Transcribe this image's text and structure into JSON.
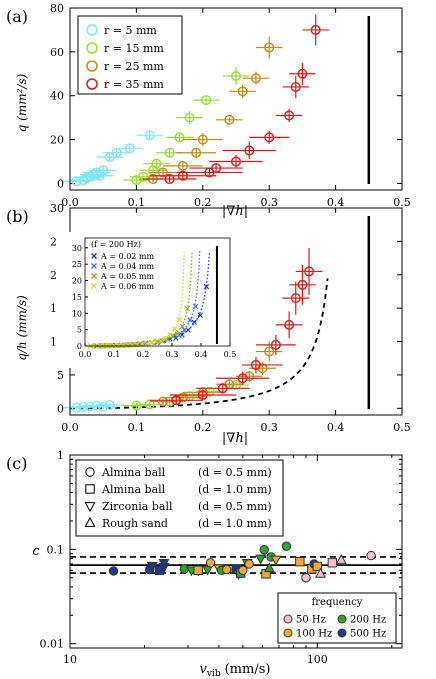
{
  "colors": {
    "r5": "#7de8f2",
    "r15": "#99dd33",
    "r25": "#c48a1a",
    "r35": "#e01818",
    "A002": "#1c2fd0",
    "A004": "#3c6ee8",
    "A005": "#9aa61c",
    "A006": "#d8d822",
    "f50": "#f4bfcf",
    "f100": "#f0a830",
    "f200": "#2aa62a",
    "f500": "#1c3a8c"
  },
  "chart_data": [
    {
      "id": "a",
      "type": "scatter",
      "panel_label": "(a)",
      "xlabel": "|∇h|",
      "ylabel": "q (mm²/s)",
      "xlim": [
        0,
        0.5
      ],
      "ylim": [
        -3,
        80
      ],
      "xticks": [
        "0.0",
        "0.1",
        "0.2",
        "0.3",
        "0.4",
        "0.5"
      ],
      "yticks": [
        "0",
        "20",
        "40",
        "60",
        "80"
      ],
      "legend_position": "top-left",
      "vline_x": 0.45,
      "series": [
        {
          "name": "r =   5 mm",
          "color": "r5",
          "points": [
            {
              "x": 0.01,
              "y": 1,
              "ex": 0.02,
              "ey": 1
            },
            {
              "x": 0.02,
              "y": 1.5,
              "ex": 0.02,
              "ey": 1
            },
            {
              "x": 0.025,
              "y": 2.5,
              "ex": 0.02,
              "ey": 1.5
            },
            {
              "x": 0.03,
              "y": 3,
              "ex": 0.02,
              "ey": 1.5
            },
            {
              "x": 0.035,
              "y": 4,
              "ex": 0.02,
              "ey": 1.5
            },
            {
              "x": 0.04,
              "y": 5,
              "ex": 0.02,
              "ey": 1.5
            },
            {
              "x": 0.045,
              "y": 3.5,
              "ex": 0.02,
              "ey": 1.5
            },
            {
              "x": 0.05,
              "y": 6,
              "ex": 0.02,
              "ey": 2
            },
            {
              "x": 0.06,
              "y": 12,
              "ex": 0.02,
              "ey": 2
            },
            {
              "x": 0.07,
              "y": 14,
              "ex": 0.02,
              "ey": 2
            },
            {
              "x": 0.09,
              "y": 16,
              "ex": 0.02,
              "ey": 2
            },
            {
              "x": 0.12,
              "y": 22,
              "ex": 0.02,
              "ey": 2
            }
          ]
        },
        {
          "name": "r = 15 mm",
          "color": "r15",
          "points": [
            {
              "x": 0.1,
              "y": 1.5,
              "ex": 0.02,
              "ey": 1.5
            },
            {
              "x": 0.11,
              "y": 3,
              "ex": 0.02,
              "ey": 1.5
            },
            {
              "x": 0.125,
              "y": 6,
              "ex": 0.02,
              "ey": 2
            },
            {
              "x": 0.13,
              "y": 9,
              "ex": 0.02,
              "ey": 2
            },
            {
              "x": 0.15,
              "y": 14,
              "ex": 0.02,
              "ey": 2
            },
            {
              "x": 0.165,
              "y": 21,
              "ex": 0.02,
              "ey": 2
            },
            {
              "x": 0.18,
              "y": 30,
              "ex": 0.02,
              "ey": 3
            },
            {
              "x": 0.205,
              "y": 38,
              "ex": 0.02,
              "ey": 2
            },
            {
              "x": 0.25,
              "y": 49,
              "ex": 0.02,
              "ey": 4
            }
          ]
        },
        {
          "name": "r = 25 mm",
          "color": "r25",
          "points": [
            {
              "x": 0.125,
              "y": 2,
              "ex": 0.02,
              "ey": 1.5
            },
            {
              "x": 0.14,
              "y": 5,
              "ex": 0.02,
              "ey": 1.5
            },
            {
              "x": 0.17,
              "y": 8,
              "ex": 0.03,
              "ey": 2
            },
            {
              "x": 0.19,
              "y": 14,
              "ex": 0.03,
              "ey": 2
            },
            {
              "x": 0.2,
              "y": 20,
              "ex": 0.03,
              "ey": 3
            },
            {
              "x": 0.24,
              "y": 29,
              "ex": 0.02,
              "ey": 1
            },
            {
              "x": 0.26,
              "y": 42,
              "ex": 0.02,
              "ey": 3
            },
            {
              "x": 0.28,
              "y": 48,
              "ex": 0.02,
              "ey": 3
            },
            {
              "x": 0.3,
              "y": 62,
              "ex": 0.02,
              "ey": 5
            }
          ]
        },
        {
          "name": "r = 35 mm",
          "color": "r35",
          "points": [
            {
              "x": 0.15,
              "y": 2,
              "ex": 0.04,
              "ey": 1.5
            },
            {
              "x": 0.17,
              "y": 3.5,
              "ex": 0.05,
              "ey": 2
            },
            {
              "x": 0.21,
              "y": 5,
              "ex": 0.05,
              "ey": 2
            },
            {
              "x": 0.22,
              "y": 7,
              "ex": 0.04,
              "ey": 2
            },
            {
              "x": 0.25,
              "y": 10,
              "ex": 0.04,
              "ey": 3
            },
            {
              "x": 0.27,
              "y": 15,
              "ex": 0.04,
              "ey": 4
            },
            {
              "x": 0.3,
              "y": 21,
              "ex": 0.03,
              "ey": 3
            },
            {
              "x": 0.33,
              "y": 31,
              "ex": 0.02,
              "ey": 3
            },
            {
              "x": 0.34,
              "y": 44,
              "ex": 0.02,
              "ey": 5
            },
            {
              "x": 0.35,
              "y": 50,
              "ex": 0.02,
              "ey": 5
            },
            {
              "x": 0.37,
              "y": 70,
              "ex": 0.02,
              "ey": 7
            }
          ]
        }
      ]
    },
    {
      "id": "b",
      "type": "scatter",
      "panel_label": "(b)",
      "xlabel": "|∇h|",
      "ylabel": "q/h (mm/s)",
      "xlim": [
        0,
        0.5
      ],
      "ylim": [
        -1,
        30
      ],
      "xticks": [
        "0.0",
        "0.1",
        "0.2",
        "0.3",
        "0.4",
        "0.5"
      ],
      "yticks": [
        "0",
        "5",
        "10",
        "15",
        "20",
        "25",
        "30"
      ],
      "vline_x": 0.45,
      "fit_curve": {
        "a": 13.5,
        "b": 0.41,
        "x_max": 0.39
      },
      "series": [
        {
          "name": "r =   5 mm",
          "color": "r5",
          "points": [
            {
              "x": 0.01,
              "y": 0.1,
              "ex": 0.02,
              "ey": 0.3
            },
            {
              "x": 0.02,
              "y": 0.2,
              "ex": 0.02,
              "ey": 0.3
            },
            {
              "x": 0.03,
              "y": 0.3,
              "ex": 0.02,
              "ey": 0.3
            },
            {
              "x": 0.04,
              "y": 0.4,
              "ex": 0.02,
              "ey": 0.3
            },
            {
              "x": 0.05,
              "y": 0.2,
              "ex": 0.02,
              "ey": 0.3
            },
            {
              "x": 0.06,
              "y": 0.5,
              "ex": 0.02,
              "ey": 0.3
            }
          ]
        },
        {
          "name": "r = 15 mm",
          "color": "r15",
          "points": [
            {
              "x": 0.1,
              "y": 0.4,
              "ex": 0.02,
              "ey": 0.4
            },
            {
              "x": 0.12,
              "y": 0.6,
              "ex": 0.02,
              "ey": 0.4
            },
            {
              "x": 0.15,
              "y": 1.0,
              "ex": 0.02,
              "ey": 0.5
            },
            {
              "x": 0.18,
              "y": 1.8,
              "ex": 0.02,
              "ey": 0.5
            },
            {
              "x": 0.21,
              "y": 2.5,
              "ex": 0.02,
              "ey": 0.6
            },
            {
              "x": 0.25,
              "y": 3.5,
              "ex": 0.02,
              "ey": 0.6
            }
          ]
        },
        {
          "name": "r = 25 mm",
          "color": "r25",
          "points": [
            {
              "x": 0.14,
              "y": 1.0,
              "ex": 0.02,
              "ey": 0.5
            },
            {
              "x": 0.17,
              "y": 1.6,
              "ex": 0.03,
              "ey": 0.6
            },
            {
              "x": 0.2,
              "y": 2.4,
              "ex": 0.03,
              "ey": 0.6
            },
            {
              "x": 0.24,
              "y": 3.6,
              "ex": 0.02,
              "ey": 0.7
            },
            {
              "x": 0.27,
              "y": 4.8,
              "ex": 0.02,
              "ey": 0.8
            },
            {
              "x": 0.29,
              "y": 6.0,
              "ex": 0.02,
              "ey": 1.0
            },
            {
              "x": 0.3,
              "y": 8.5,
              "ex": 0.02,
              "ey": 1.5
            }
          ]
        },
        {
          "name": "r = 35 mm",
          "color": "r35",
          "points": [
            {
              "x": 0.16,
              "y": 1.2,
              "ex": 0.04,
              "ey": 0.6
            },
            {
              "x": 0.2,
              "y": 2.0,
              "ex": 0.05,
              "ey": 0.7
            },
            {
              "x": 0.23,
              "y": 3.0,
              "ex": 0.04,
              "ey": 0.8
            },
            {
              "x": 0.26,
              "y": 4.5,
              "ex": 0.04,
              "ey": 1.0
            },
            {
              "x": 0.28,
              "y": 6.5,
              "ex": 0.04,
              "ey": 1.2
            },
            {
              "x": 0.31,
              "y": 9.5,
              "ex": 0.03,
              "ey": 1.5
            },
            {
              "x": 0.33,
              "y": 12.5,
              "ex": 0.02,
              "ey": 2
            },
            {
              "x": 0.34,
              "y": 16.5,
              "ex": 0.02,
              "ey": 2.5
            },
            {
              "x": 0.35,
              "y": 18.5,
              "ex": 0.02,
              "ey": 3
            },
            {
              "x": 0.36,
              "y": 20.5,
              "ex": 0.02,
              "ey": 3.5
            }
          ]
        }
      ],
      "inset": {
        "label": "(f = 200 Hz)",
        "xlim": [
          0,
          0.5
        ],
        "ylim": [
          0,
          33
        ],
        "xticks": [
          "0.0",
          "0.1",
          "0.2",
          "0.3",
          "0.4",
          "0.5"
        ],
        "yticks": [
          "0",
          "5",
          "10",
          "15",
          "20",
          "25",
          "30"
        ],
        "vline_x": 0.455,
        "series": [
          {
            "name": "A = 0.02 mm",
            "color": "A002",
            "b": 0.45,
            "a": 14,
            "x_from": 0.02
          },
          {
            "name": "A = 0.04 mm",
            "color": "A004",
            "b": 0.41,
            "a": 12.5,
            "x_from": 0.02
          },
          {
            "name": "A = 0.05 mm",
            "color": "A005",
            "b": 0.38,
            "a": 12,
            "x_from": 0.02
          },
          {
            "name": "A = 0.06 mm",
            "color": "A006",
            "b": 0.35,
            "a": 11,
            "x_from": 0.02
          }
        ]
      }
    },
    {
      "id": "c",
      "type": "scatter",
      "panel_label": "(c)",
      "xlabel": "v",
      "xlabel_sub": "vib",
      "xlabel_unit": "(mm/s)",
      "ylabel": "c",
      "xscale": "log",
      "yscale": "log",
      "xlim": [
        10,
        220
      ],
      "ylim": [
        0.009,
        1
      ],
      "xticks": [
        {
          "v": 10,
          "label": "10"
        },
        {
          "v": 100,
          "label": "100"
        }
      ],
      "yticks": [
        {
          "v": 0.01,
          "label": "0.01"
        },
        {
          "v": 0.1,
          "label": "0.1"
        },
        {
          "v": 1,
          "label": "1"
        }
      ],
      "hlines": {
        "mean": 0.068,
        "upper": 0.083,
        "lower": 0.056
      },
      "shape_legend": [
        {
          "shape": "circle",
          "label": "Almina ball",
          "detail": "(d = 0.5 mm)"
        },
        {
          "shape": "square",
          "label": "Almina ball",
          "detail": "(d = 1.0 mm)"
        },
        {
          "shape": "triangle-down",
          "label": "Zirconia ball",
          "detail": "(d = 0.5 mm)"
        },
        {
          "shape": "triangle-up",
          "label": "Rough sand",
          "detail": "(d = 1.0 mm)"
        }
      ],
      "freq_legend_title": "frequency",
      "freq_legend": [
        {
          "label": "50 Hz",
          "color": "f50"
        },
        {
          "label": "200 Hz",
          "color": "f200"
        },
        {
          "label": "100 Hz",
          "color": "f100"
        },
        {
          "label": "500 Hz",
          "color": "f500"
        }
      ],
      "points": [
        {
          "x": 15,
          "y": 0.059,
          "shape": "circle",
          "f": "f500"
        },
        {
          "x": 21,
          "y": 0.061,
          "shape": "circle",
          "f": "f500"
        },
        {
          "x": 21.5,
          "y": 0.067,
          "shape": "triangle-down",
          "f": "f500"
        },
        {
          "x": 23,
          "y": 0.06,
          "shape": "square",
          "f": "f500"
        },
        {
          "x": 24,
          "y": 0.065,
          "shape": "triangle-down",
          "f": "f500"
        },
        {
          "x": 24,
          "y": 0.072,
          "shape": "triangle-down",
          "f": "f500"
        },
        {
          "x": 29,
          "y": 0.062,
          "shape": "circle",
          "f": "f200"
        },
        {
          "x": 31,
          "y": 0.06,
          "shape": "triangle-down",
          "f": "f200"
        },
        {
          "x": 33,
          "y": 0.06,
          "shape": "triangle-down",
          "f": "f500"
        },
        {
          "x": 33,
          "y": 0.06,
          "shape": "square",
          "f": "f100"
        },
        {
          "x": 36,
          "y": 0.061,
          "shape": "triangle-down",
          "f": "f200"
        },
        {
          "x": 37,
          "y": 0.072,
          "shape": "circle",
          "f": "f100"
        },
        {
          "x": 40,
          "y": 0.063,
          "shape": "triangle-down",
          "f": "f100"
        },
        {
          "x": 41,
          "y": 0.06,
          "shape": "circle",
          "f": "f200"
        },
        {
          "x": 43,
          "y": 0.061,
          "shape": "circle",
          "f": "f100"
        },
        {
          "x": 47,
          "y": 0.062,
          "shape": "square",
          "f": "f500"
        },
        {
          "x": 48,
          "y": 0.055,
          "shape": "triangle-down",
          "f": "f200"
        },
        {
          "x": 49,
          "y": 0.056,
          "shape": "square",
          "f": "f200"
        },
        {
          "x": 50,
          "y": 0.06,
          "shape": "circle",
          "f": "f100"
        },
        {
          "x": 52,
          "y": 0.072,
          "shape": "triangle-down",
          "f": "f200"
        },
        {
          "x": 53,
          "y": 0.07,
          "shape": "circle",
          "f": "f100"
        },
        {
          "x": 59,
          "y": 0.08,
          "shape": "triangle-down",
          "f": "f200"
        },
        {
          "x": 61,
          "y": 0.099,
          "shape": "circle",
          "f": "f200"
        },
        {
          "x": 62,
          "y": 0.055,
          "shape": "square",
          "f": "f100"
        },
        {
          "x": 64,
          "y": 0.063,
          "shape": "triangle-up",
          "f": "f200"
        },
        {
          "x": 65,
          "y": 0.083,
          "shape": "circle",
          "f": "f200"
        },
        {
          "x": 68,
          "y": 0.078,
          "shape": "triangle-down",
          "f": "f100"
        },
        {
          "x": 75,
          "y": 0.108,
          "shape": "circle",
          "f": "f200"
        },
        {
          "x": 85,
          "y": 0.074,
          "shape": "square",
          "f": "f100"
        },
        {
          "x": 90,
          "y": 0.05,
          "shape": "circle",
          "f": "f50"
        },
        {
          "x": 95,
          "y": 0.062,
          "shape": "square",
          "f": "f100"
        },
        {
          "x": 97,
          "y": 0.07,
          "shape": "circle",
          "f": "f500"
        },
        {
          "x": 100,
          "y": 0.066,
          "shape": "square",
          "f": "f100"
        },
        {
          "x": 103,
          "y": 0.055,
          "shape": "triangle-up",
          "f": "f50"
        },
        {
          "x": 115,
          "y": 0.072,
          "shape": "square",
          "f": "f50"
        },
        {
          "x": 125,
          "y": 0.077,
          "shape": "triangle-up",
          "f": "f50"
        },
        {
          "x": 165,
          "y": 0.086,
          "shape": "circle",
          "f": "f50"
        }
      ]
    }
  ]
}
